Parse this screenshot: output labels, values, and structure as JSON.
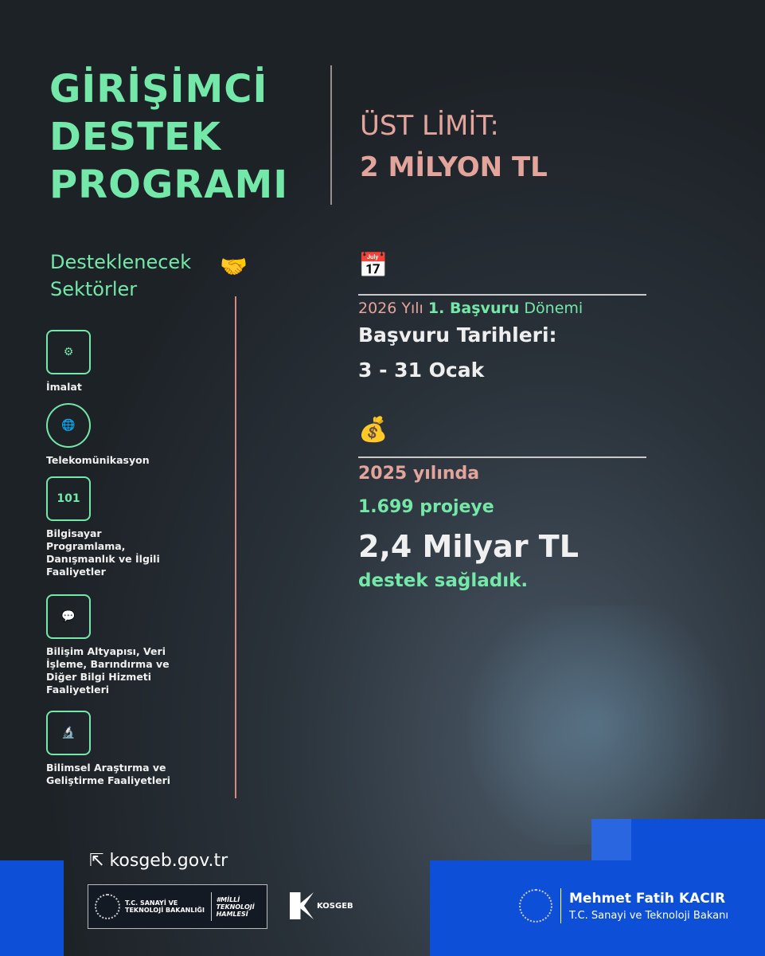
{
  "title_lines": [
    "GİRİŞİMCİ",
    "DESTEK",
    "PROGRAMI"
  ],
  "limit": {
    "label": "ÜST LİMİT:",
    "value": "2 MİLYON TL"
  },
  "sectors": {
    "title_lines": [
      "Desteklenecek",
      "Sektörler"
    ],
    "items": [
      {
        "label": "İmalat",
        "icon": "factory-robot-icon",
        "glyph": "⚙"
      },
      {
        "label": "Telekomünikasyon",
        "icon": "globe-orbit-icon",
        "glyph": "🌐"
      },
      {
        "label": "Bilgisayar Programlama, Danışmanlık ve İlgili Faaliyetler",
        "icon": "binary-monitor-icon",
        "glyph": "101"
      },
      {
        "label": "Bilişim Altyapısı, Veri İşleme, Barındırma ve Diğer Bilgi Hizmeti Faaliyetleri",
        "icon": "chat-circuit-icon",
        "glyph": "💬"
      },
      {
        "label": "Bilimsel Araştırma ve Geliştirme Faaliyetleri",
        "icon": "microscope-icon",
        "glyph": "🔬"
      }
    ]
  },
  "application": {
    "year": "2026 Yılı",
    "round": "1. Başvuru",
    "period": "Dönemi",
    "dates_label": "Başvuru Tarihleri:",
    "dates": "3 - 31 Ocak"
  },
  "stats": {
    "year": "2025 yılında",
    "projects": "1.699 projeye",
    "amount": "2,4 Milyar TL",
    "suffix": "destek sağladık."
  },
  "footer": {
    "url": "kosgeb.gov.tr",
    "ministry": "T.C. SANAYİ VE TEKNOLOJİ BAKANLIĞI",
    "campaign": "#MİLLİ TEKNOLOJİ HAMLESİ",
    "kosgeb": "KOSGEB",
    "minister_name": "Mehmet Fatih KACIR",
    "minister_role": "T.C. Sanayi ve Teknoloji Bakanı"
  },
  "colors": {
    "green": "#74e8a8",
    "pink": "#e3a49c",
    "blue": "#0d4fd6",
    "background": "#1d2227"
  }
}
